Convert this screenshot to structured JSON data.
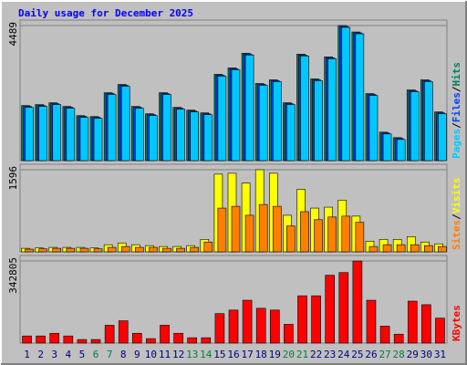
{
  "chart_data": {
    "type": "bar",
    "title": "Daily usage for December 2025",
    "separator": "/",
    "categories": [
      "1",
      "2",
      "3",
      "4",
      "5",
      "6",
      "7",
      "8",
      "9",
      "10",
      "11",
      "12",
      "13",
      "14",
      "15",
      "16",
      "17",
      "18",
      "19",
      "20",
      "21",
      "22",
      "23",
      "24",
      "25",
      "26",
      "27",
      "28",
      "29",
      "30",
      "31"
    ],
    "category_colors": [
      "#000080",
      "#000080",
      "#000080",
      "#000080",
      "#000080",
      "#008040",
      "#008040",
      "#000080",
      "#000080",
      "#000080",
      "#000080",
      "#000080",
      "#008040",
      "#008040",
      "#000080",
      "#000080",
      "#000080",
      "#000080",
      "#000080",
      "#008040",
      "#008040",
      "#000080",
      "#000080",
      "#000080",
      "#000080",
      "#000080",
      "#008040",
      "#008040",
      "#000080",
      "#000080",
      "#000080"
    ],
    "panels": [
      {
        "ylim": [
          0,
          4489
        ],
        "yticks": [
          4489
        ],
        "grid": true,
        "series": [
          {
            "name": "Hits",
            "color": "#00805c",
            "values": [
              1830,
              1861,
              1922,
              1800,
              1495,
              1464,
              2257,
              2532,
              1800,
              1556,
              2257,
              1769,
              1678,
              1586,
              2868,
              3081,
              3570,
              2563,
              2685,
              1922,
              3539,
              2716,
              3447,
              4489,
              4275,
              2227,
              946,
              763,
              2349,
              2685,
              1617
            ]
          },
          {
            "name": "Files",
            "color": "#0040ff",
            "values": [
              1800,
              1831,
              1892,
              1770,
              1465,
              1434,
              2227,
              2502,
              1770,
              1526,
              2227,
              1739,
              1648,
              1556,
              2838,
              3051,
              3540,
              2533,
              2655,
              1892,
              3509,
              2686,
              3417,
              4459,
              4245,
              2197,
              916,
              733,
              2319,
              2655,
              1587
            ]
          },
          {
            "name": "Pages",
            "color": "#00c8ff",
            "values": [
              1770,
              1801,
              1862,
              1740,
              1435,
              1404,
              2197,
              2472,
              1740,
              1496,
              2197,
              1709,
              1618,
              1526,
              2808,
              3021,
              3510,
              2503,
              2625,
              1862,
              3479,
              2656,
              3387,
              4429,
              4215,
              2167,
              886,
              703,
              2289,
              2625,
              1557
            ]
          }
        ]
      },
      {
        "ylim": [
          0,
          1596
        ],
        "yticks": [
          1596
        ],
        "grid": true,
        "series": [
          {
            "name": "Visits",
            "color": "#ffff00",
            "values": [
              69,
              75,
              87,
              87,
              87,
              75,
              139,
              173,
              139,
              121,
              104,
              104,
              121,
              243,
              1510,
              1527,
              1336,
              1596,
              1527,
              711,
              1215,
              850,
              868,
              1006,
              694,
              208,
              243,
              243,
              295,
              191,
              156
            ]
          },
          {
            "name": "Sites",
            "color": "#ff8000",
            "values": [
              52,
              58,
              69,
              69,
              69,
              58,
              87,
              104,
              87,
              87,
              69,
              69,
              87,
              191,
              850,
              885,
              711,
              920,
              885,
              503,
              781,
              625,
              677,
              694,
              573,
              104,
              139,
              139,
              139,
              121,
              104
            ]
          }
        ]
      },
      {
        "ylim": [
          0,
          342805
        ],
        "yticks": [
          342805
        ],
        "grid": true,
        "series": [
          {
            "name": "KBytes",
            "color": "#ff0000",
            "values": [
              29810,
              29810,
              41000,
              29810,
              14900,
              14900,
              74520,
              93150,
              41000,
              18630,
              74520,
              41000,
              22360,
              22360,
              122960,
              137860,
              178850,
              145310,
              137860,
              78250,
              197480,
              197480,
              283180,
              294350,
              342805,
              178850,
              70800,
              37260,
              175120,
              160220,
              104330
            ]
          }
        ]
      }
    ]
  }
}
